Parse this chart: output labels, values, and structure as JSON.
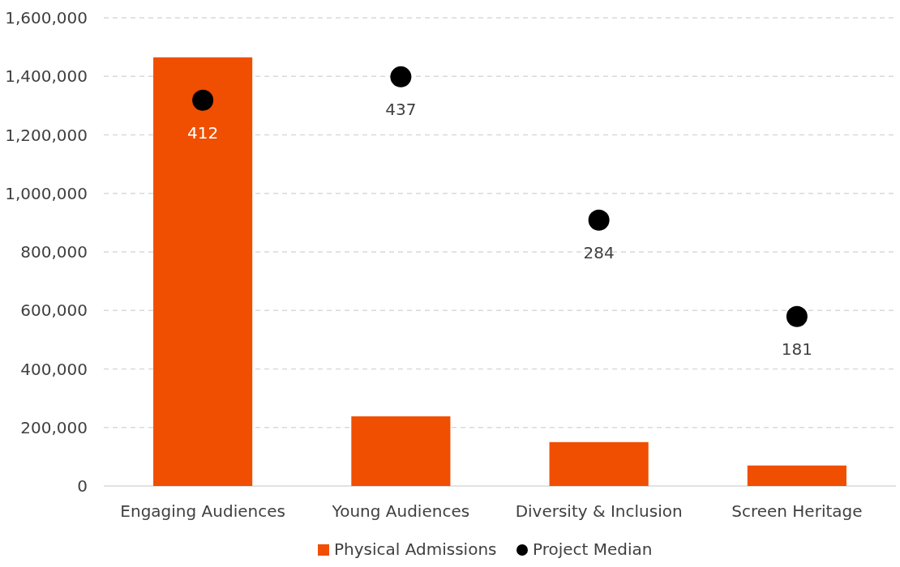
{
  "chart_data": {
    "type": "bar",
    "categories": [
      "Engaging Audiences",
      "Young Audiences",
      "Diversity & Inclusion",
      "Screen Heritage"
    ],
    "series": [
      {
        "name": "Physical Admissions",
        "color": "#f04e00",
        "values": [
          1465000,
          238000,
          150000,
          70000
        ]
      },
      {
        "name": "Project Median",
        "type": "scatter",
        "axis": "y2",
        "color": "#000000",
        "values": [
          412,
          437,
          284,
          181
        ],
        "value_labels": [
          "412",
          "437",
          "284",
          "181"
        ]
      }
    ],
    "ylim": [
      0,
      1600000
    ],
    "yticks": [
      {
        "value": 0,
        "label": "0"
      },
      {
        "value": 200000,
        "label": "200,000"
      },
      {
        "value": 400000,
        "label": "400,000"
      },
      {
        "value": 600000,
        "label": "600,000"
      },
      {
        "value": 800000,
        "label": "800,000"
      },
      {
        "value": 1000000,
        "label": "1,000,000"
      },
      {
        "value": 1200000,
        "label": "1,200,000"
      },
      {
        "value": 1400000,
        "label": "1,400,000"
      },
      {
        "value": 1600000,
        "label": "1,600,000"
      }
    ],
    "y2lim": [
      0,
      500
    ],
    "grid": "y",
    "legend": "bottom",
    "marker": "circle"
  }
}
